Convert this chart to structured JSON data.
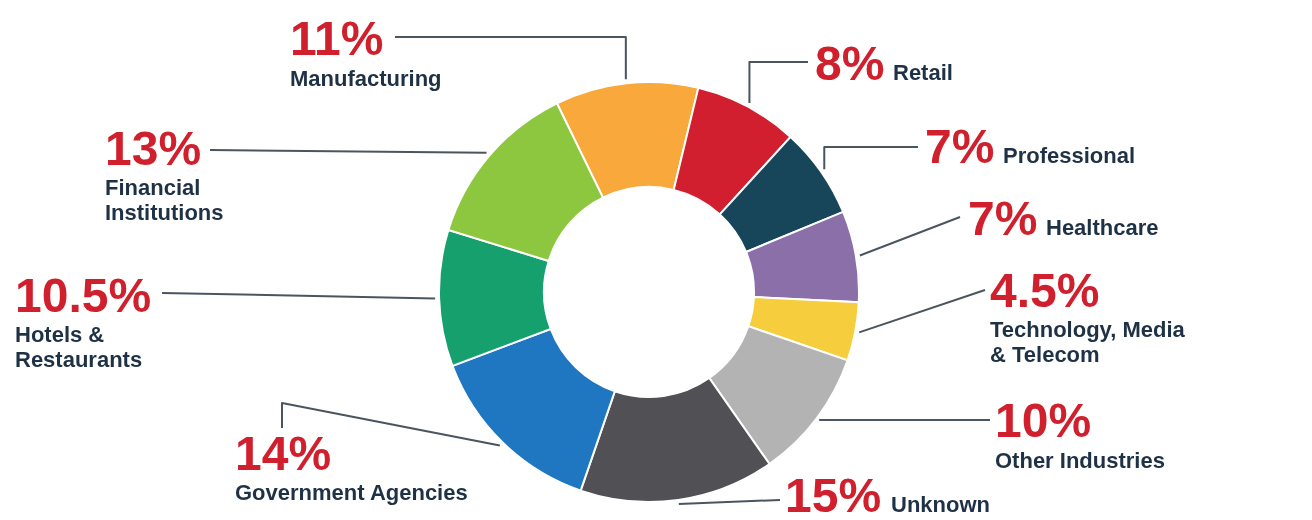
{
  "chart_data": {
    "type": "donut",
    "categories": [
      "Manufacturing",
      "Retail",
      "Professional",
      "Healthcare",
      "Technology, Media & Telecom",
      "Other Industries",
      "Unknown",
      "Government Agencies",
      "Hotels & Restaurants",
      "Financial Institutions"
    ],
    "values": [
      11,
      8,
      7,
      7,
      4.5,
      10,
      15,
      14,
      10.5,
      13
    ],
    "value_labels": [
      "11%",
      "8%",
      "7%",
      "7%",
      "4.5%",
      "10%",
      "15%",
      "14%",
      "10.5%",
      "13%"
    ],
    "colors": [
      "#f9a93b",
      "#d21f2f",
      "#17465a",
      "#8a6fa8",
      "#f6cd3c",
      "#b3b3b3",
      "#505055",
      "#1f76c1",
      "#16a06d",
      "#8dc63f"
    ]
  }
}
